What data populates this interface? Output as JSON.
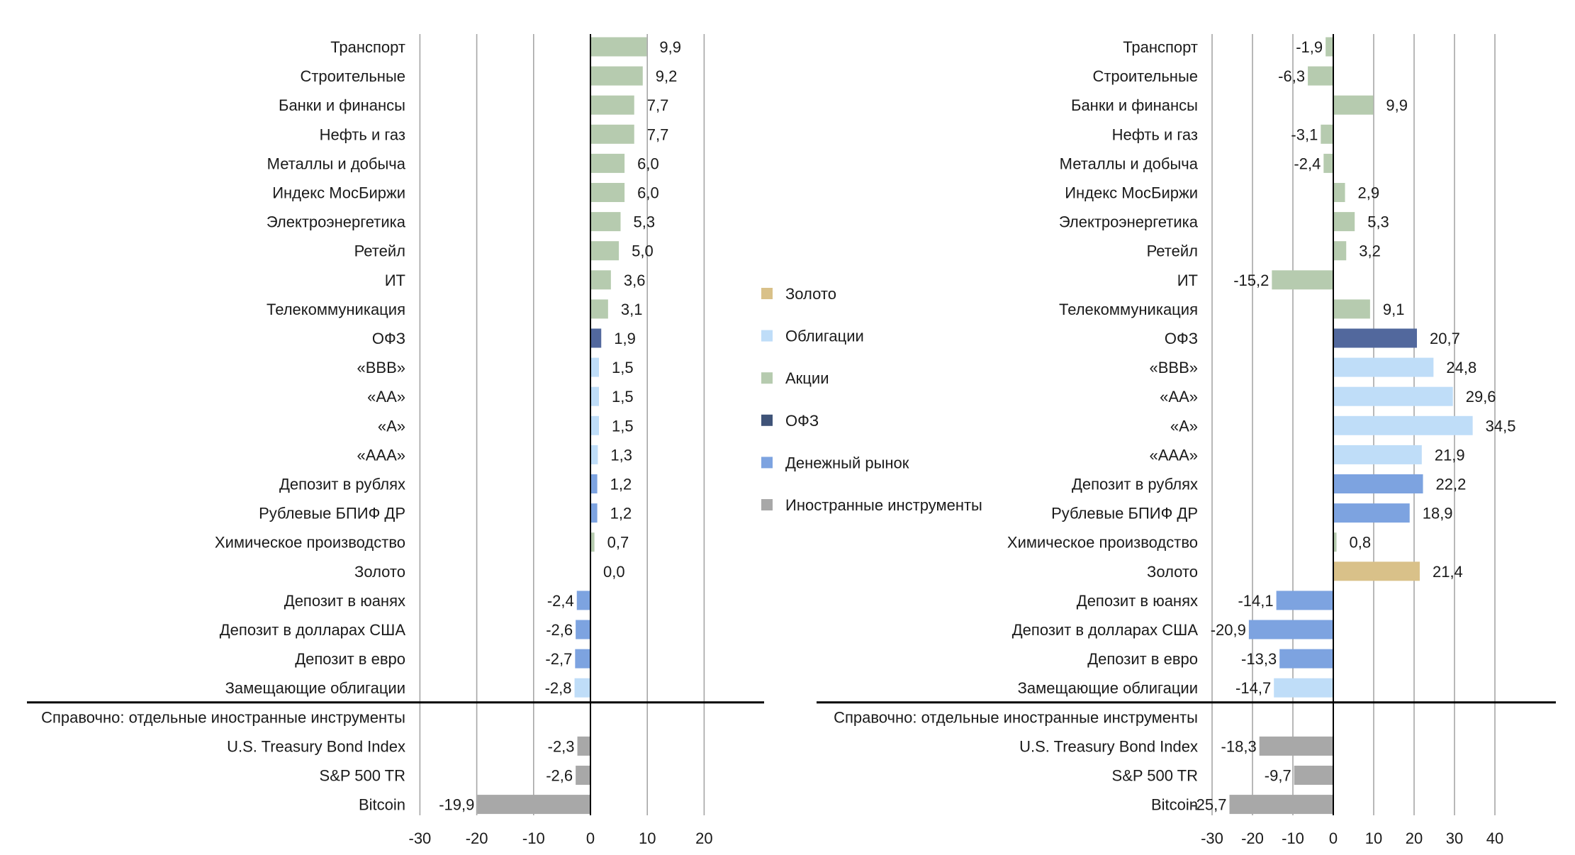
{
  "colors": {
    "gold": "#D9C189",
    "bonds": "#BFDDF8",
    "stocks": "#B6CBAF",
    "ofz": "#52689D",
    "money": "#7DA3E0",
    "foreign": "#A8A8A8",
    "grid": "#A6A6A6",
    "axis": "#000000"
  },
  "legend": [
    {
      "label": "Золото",
      "color": "#D9C189"
    },
    {
      "label": "Облигации",
      "color": "#BFDDF8"
    },
    {
      "label": "Акции",
      "color": "#B6CBAF"
    },
    {
      "label": "ОФЗ",
      "color": "#3F5378"
    },
    {
      "label": "Денежный рынок",
      "color": "#7DA3E0"
    },
    {
      "label": "Иностранные инструменты",
      "color": "#A8A8A8"
    }
  ],
  "reference_label": "Справочно: отдельные иностранные инструменты",
  "chart_data": [
    {
      "type": "bar",
      "orientation": "horizontal",
      "title": "",
      "xlabel": "",
      "ylabel": "",
      "xlim": [
        -30,
        20
      ],
      "xticks": [
        "-30",
        "-20",
        "-10",
        "0",
        "10",
        "20"
      ],
      "grid": true,
      "categories": [
        "Транспорт",
        "Строительные",
        "Банки и финансы",
        "Нефть и газ",
        "Металлы и добыча",
        "Индекс МосБиржи",
        "Электроэнергетика",
        "Ретейл",
        "ИТ",
        "Телекоммуникация",
        "ОФЗ",
        "«ВВВ»",
        "«АА»",
        "«А»",
        "«ААА»",
        "Депозит в рублях",
        "Рублевые БПИФ ДР",
        "Химическое производство",
        "Золото",
        "Депозит в юанях",
        "Депозит в долларах США",
        "Депозит в евро",
        "Замещающие облигации",
        "U.S. Treasury Bond Index",
        "S&P 500 TR",
        "Bitcoin"
      ],
      "values": [
        9.9,
        9.2,
        7.7,
        7.7,
        6.0,
        6.0,
        5.3,
        5.0,
        3.6,
        3.1,
        1.9,
        1.5,
        1.5,
        1.5,
        1.3,
        1.2,
        1.2,
        0.7,
        0.0,
        -2.4,
        -2.6,
        -2.7,
        -2.8,
        -2.3,
        -2.6,
        -19.9
      ],
      "labels": [
        "9,9",
        "9,2",
        "7,7",
        "7,7",
        "6,0",
        "6,0",
        "5,3",
        "5,0",
        "3,6",
        "3,1",
        "1,9",
        "1,5",
        "1,5",
        "1,5",
        "1,3",
        "1,2",
        "1,2",
        "0,7",
        "0,0",
        "-2,4",
        "-2,6",
        "-2,7",
        "-2,8",
        "-2,3",
        "-2,6",
        "-19,9"
      ],
      "groups": [
        "stocks",
        "stocks",
        "stocks",
        "stocks",
        "stocks",
        "stocks",
        "stocks",
        "stocks",
        "stocks",
        "stocks",
        "ofz",
        "bonds",
        "bonds",
        "bonds",
        "bonds",
        "money",
        "money",
        "stocks",
        "gold",
        "money",
        "money",
        "money",
        "bonds",
        "foreign",
        "foreign",
        "foreign"
      ]
    },
    {
      "type": "bar",
      "orientation": "horizontal",
      "title": "",
      "xlabel": "",
      "ylabel": "",
      "xlim": [
        -30,
        50
      ],
      "xticks": [
        "-30",
        "-20",
        "-10",
        "0",
        "10",
        "20",
        "30",
        "40"
      ],
      "grid": true,
      "categories": [
        "Транспорт",
        "Строительные",
        "Банки и финансы",
        "Нефть и газ",
        "Металлы и добыча",
        "Индекс МосБиржи",
        "Электроэнергетика",
        "Ретейл",
        "ИТ",
        "Телекоммуникация",
        "ОФЗ",
        "«ВВВ»",
        "«АА»",
        "«А»",
        "«ААА»",
        "Депозит в рублях",
        "Рублевые БПИФ ДР",
        "Химическое производство",
        "Золото",
        "Депозит в юанях",
        "Депозит в долларах США",
        "Депозит в евро",
        "Замещающие облигации",
        "U.S. Treasury Bond Index",
        "S&P 500 TR",
        "Bitcoin"
      ],
      "values": [
        -1.9,
        -6.3,
        9.9,
        -3.1,
        -2.4,
        2.9,
        5.3,
        3.2,
        -15.2,
        9.1,
        20.7,
        24.8,
        29.6,
        34.5,
        21.9,
        22.2,
        18.9,
        0.8,
        21.4,
        -14.1,
        -20.9,
        -13.3,
        -14.7,
        -18.3,
        -9.7,
        -25.7
      ],
      "labels": [
        "-1,9",
        "-6,3",
        "9,9",
        "-3,1",
        "-2,4",
        "2,9",
        "5,3",
        "3,2",
        "-15,2",
        "9,1",
        "20,7",
        "24,8",
        "29,6",
        "34,5",
        "21,9",
        "22,2",
        "18,9",
        "0,8",
        "21,4",
        "-14,1",
        "-20,9",
        "-13,3",
        "-14,7",
        "-18,3",
        "-9,7",
        "-25,7"
      ],
      "groups": [
        "stocks",
        "stocks",
        "stocks",
        "stocks",
        "stocks",
        "stocks",
        "stocks",
        "stocks",
        "stocks",
        "stocks",
        "ofz",
        "bonds",
        "bonds",
        "bonds",
        "bonds",
        "money",
        "money",
        "stocks",
        "gold",
        "money",
        "money",
        "money",
        "bonds",
        "foreign",
        "foreign",
        "foreign"
      ]
    }
  ]
}
